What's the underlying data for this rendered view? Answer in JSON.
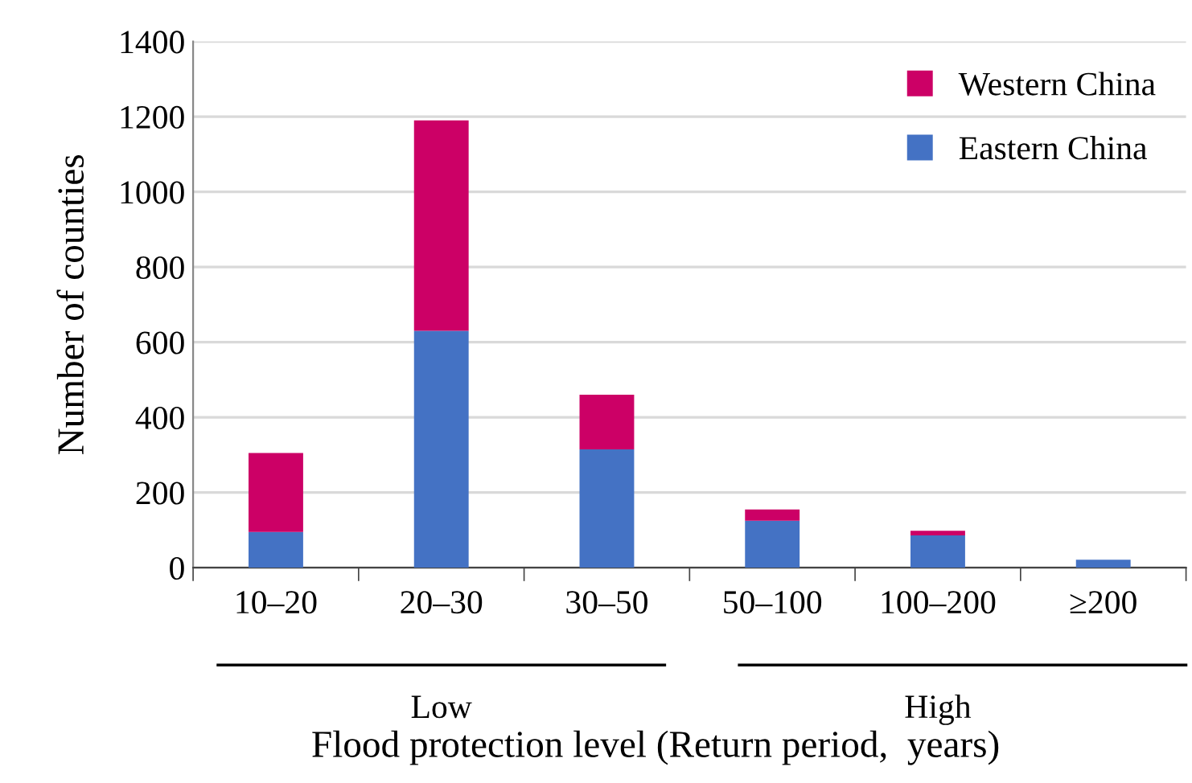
{
  "chart_data": {
    "type": "bar",
    "stacked": true,
    "categories": [
      "10–20",
      "20–30",
      "30–50",
      "50–100",
      "100–200",
      "≥200"
    ],
    "series": [
      {
        "name": "Eastern China",
        "color": "#4472c4",
        "values": [
          95,
          630,
          315,
          125,
          86,
          21
        ]
      },
      {
        "name": "Western China",
        "color": "#cc0066",
        "values": [
          210,
          560,
          145,
          30,
          12,
          0
        ]
      }
    ],
    "xlabel": "Flood protection level (Return period,  years)",
    "ylabel": "Number of counties",
    "annotations": [
      "Low",
      "High"
    ],
    "ylim": [
      0,
      1400
    ],
    "yticks": [
      0,
      200,
      400,
      600,
      800,
      1000,
      1200,
      1400
    ],
    "grid": "y",
    "legend": "top right"
  }
}
